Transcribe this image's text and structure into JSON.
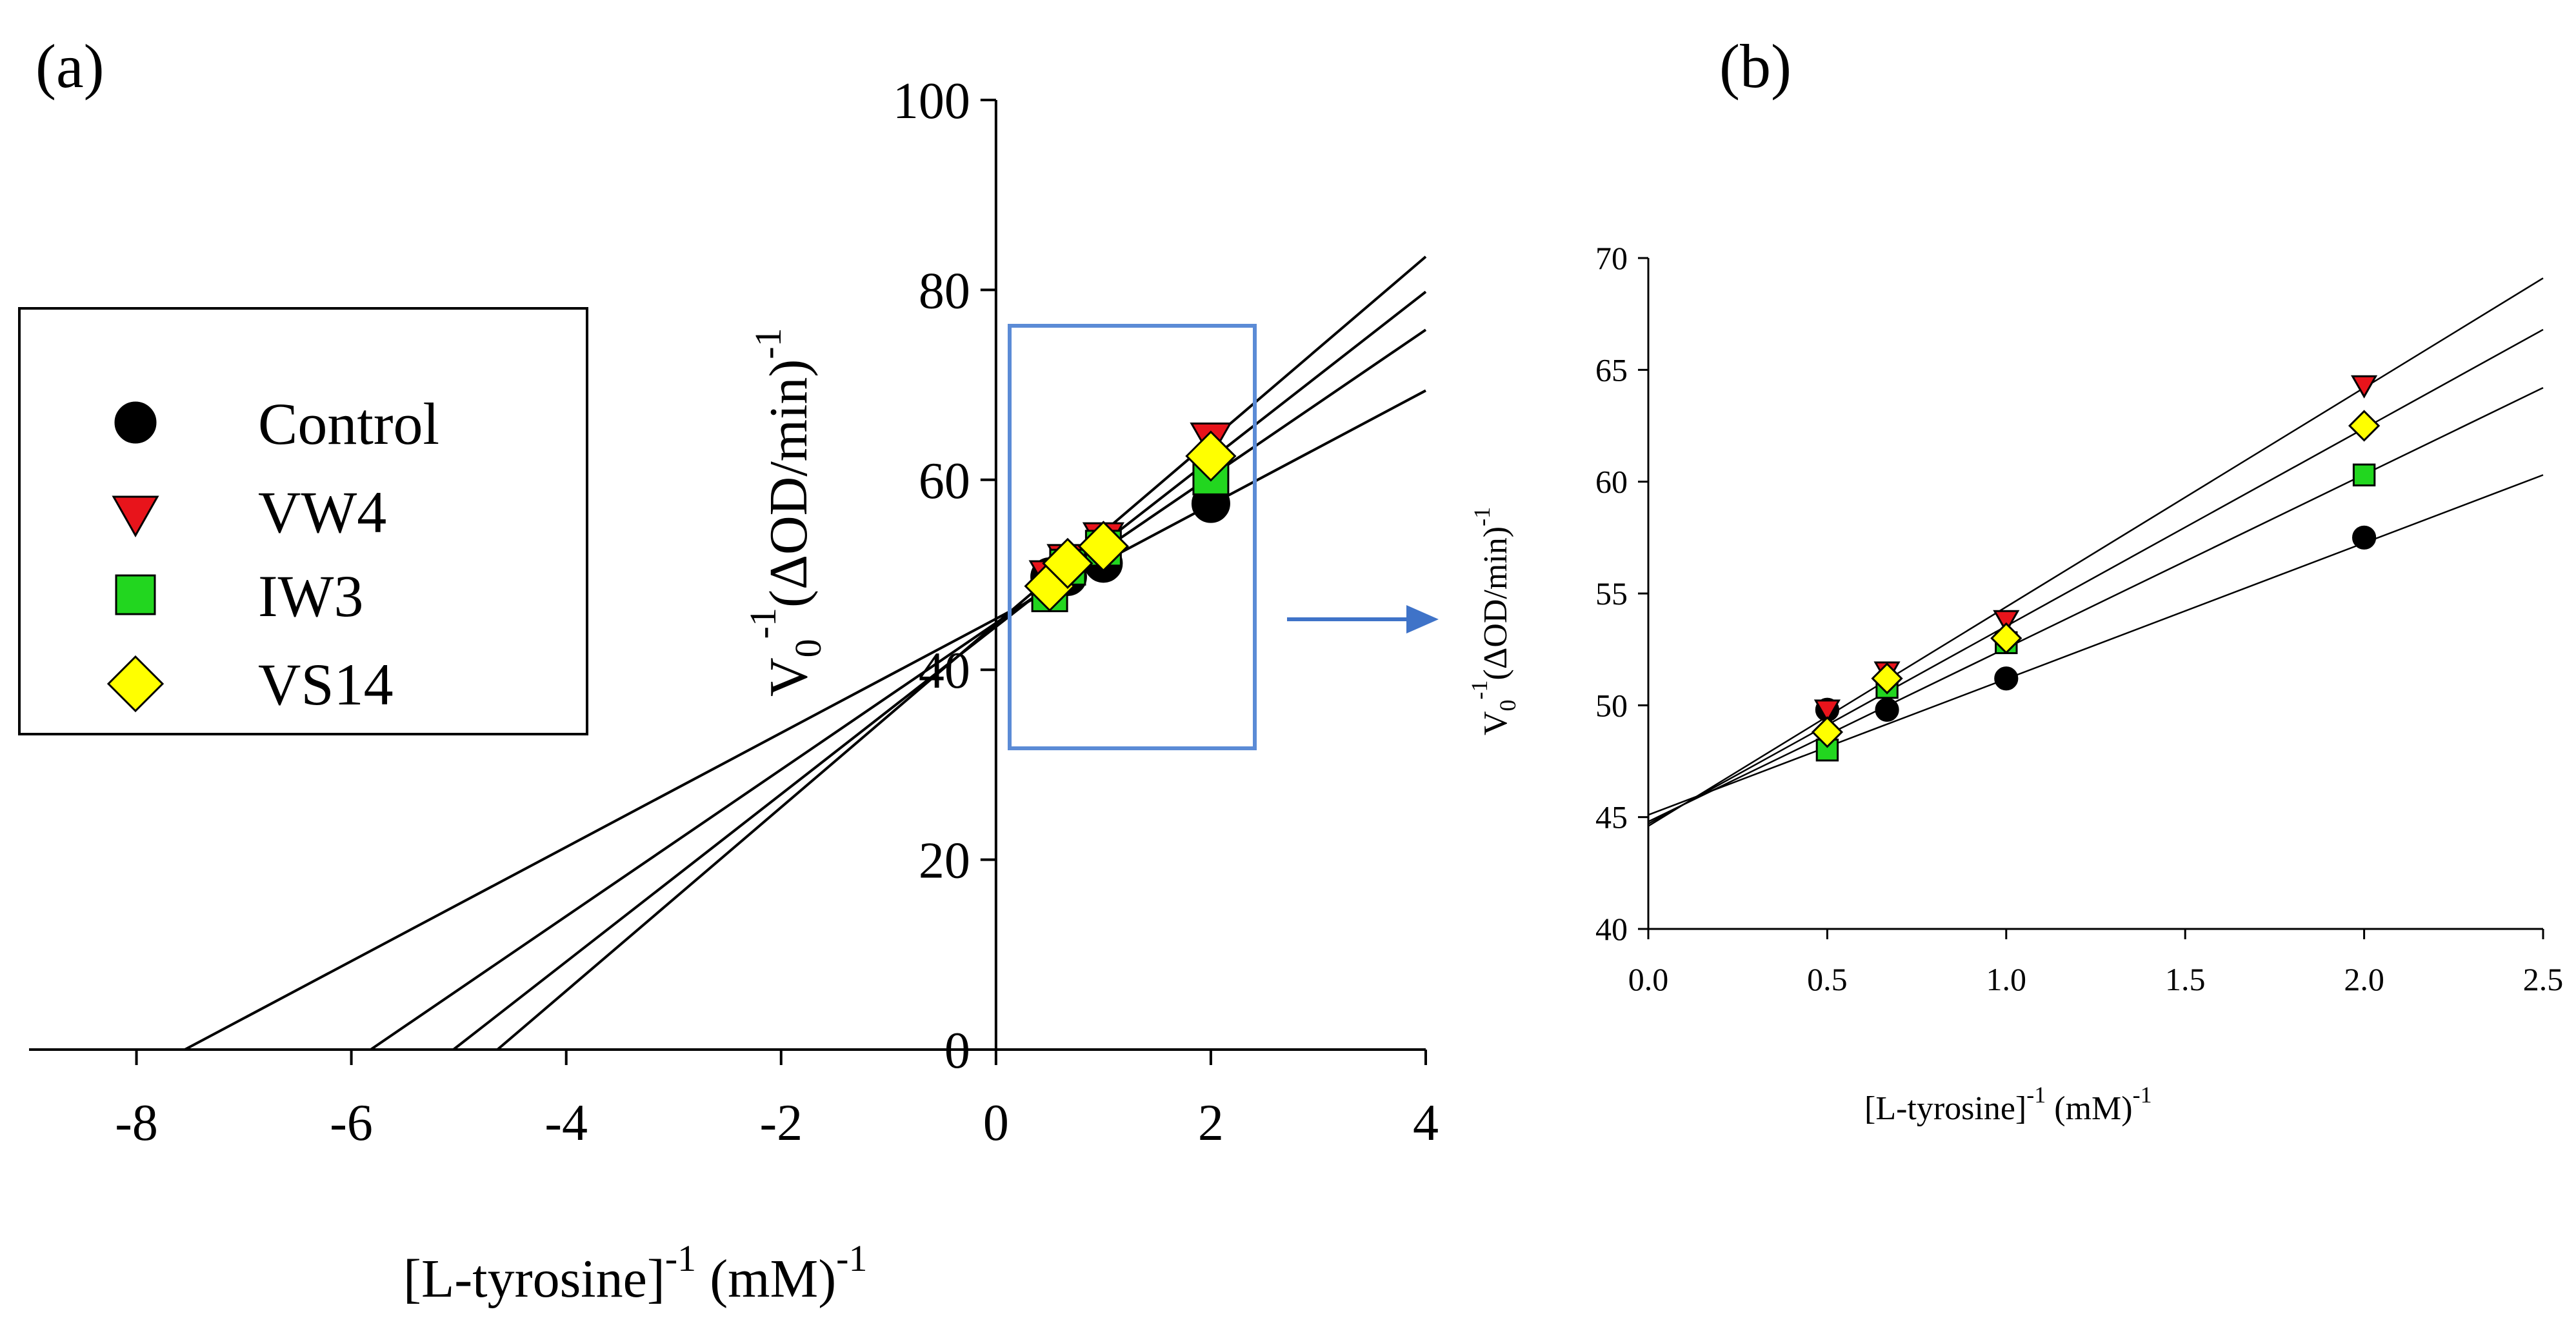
{
  "figure_labels": {
    "a": "(a)",
    "b": "(b)"
  },
  "axis_text": {
    "a": {
      "x_main": "[L-tyrosine]",
      "x_sup1": "-1",
      "x_unit": " (mM)",
      "x_sup2": "-1",
      "y_main": "V",
      "y_sub": "0",
      "y_sup1": "-1",
      "y_unit": "(ΔOD/min)",
      "y_sup2": "-1"
    },
    "b": {
      "x_main": "[L-tyrosine]",
      "x_sup1": "-1",
      "x_unit": " (mM)",
      "x_sup2": "-1",
      "y_main": "V",
      "y_sub": "0",
      "y_sup1": "-1",
      "y_unit": "(ΔOD/min)",
      "y_sup2": "-1"
    }
  },
  "colors": {
    "Control": "#000000",
    "VW4": "#e8141b",
    "IW3": "#22d61f",
    "VS14": "#ffff00",
    "inset_box": "#5b8bd6",
    "arrow": "#3f73c8"
  },
  "chart_data": [
    {
      "type": "scatter",
      "panel": "a",
      "title": "",
      "xlabel": "[L-tyrosine]-1 (mM)-1",
      "ylabel": "V0-1(ΔOD/min)-1",
      "xlim": [
        -9,
        4
      ],
      "ylim": [
        0,
        100
      ],
      "xticks": [
        -8,
        -6,
        -4,
        -2,
        0,
        2,
        4
      ],
      "yticks": [
        0,
        20,
        40,
        60,
        80,
        100
      ],
      "xtick_labels": [
        "-8",
        "-6",
        "-4",
        "-2",
        "0",
        "2",
        "4"
      ],
      "ytick_labels": [
        "0",
        "20",
        "40",
        "60",
        "80",
        "100"
      ],
      "legend_position": "left",
      "series": [
        {
          "name": "Control",
          "marker": "circle",
          "x": [
            0.5,
            0.667,
            1.0,
            2.0
          ],
          "y": [
            49.8,
            49.8,
            51.2,
            57.5
          ],
          "fit": {
            "x": [
              -7.55,
              4
            ],
            "y": [
              0,
              69.4
            ]
          }
        },
        {
          "name": "VW4",
          "marker": "triangle-down",
          "x": [
            0.5,
            0.667,
            1.0,
            2.0
          ],
          "y": [
            49.8,
            51.5,
            53.8,
            64.3
          ],
          "fit": {
            "x": [
              -4.64,
              4
            ],
            "y": [
              0,
              83.5
            ]
          }
        },
        {
          "name": "IW3",
          "marker": "square",
          "x": [
            0.5,
            0.667,
            1.0,
            2.0
          ],
          "y": [
            48.0,
            50.8,
            52.8,
            60.3
          ],
          "fit": {
            "x": [
              -5.82,
              4
            ],
            "y": [
              0,
              75.8
            ]
          }
        },
        {
          "name": "VS14",
          "marker": "diamond",
          "x": [
            0.5,
            0.667,
            1.0,
            2.0
          ],
          "y": [
            48.8,
            51.2,
            53.0,
            62.5
          ],
          "fit": {
            "x": [
              -5.05,
              4
            ],
            "y": [
              0,
              79.8
            ]
          }
        }
      ]
    },
    {
      "type": "scatter",
      "panel": "b",
      "title": "",
      "xlabel": "[L-tyrosine]-1 (mM)-1",
      "ylabel": "V0-1(ΔOD/min)-1",
      "xlim": [
        0,
        2.5
      ],
      "ylim": [
        40,
        70
      ],
      "xticks": [
        0,
        0.5,
        1.0,
        1.5,
        2.0,
        2.5
      ],
      "yticks": [
        40,
        45,
        50,
        55,
        60,
        65,
        70
      ],
      "xtick_labels": [
        "0.0",
        "0.5",
        "1.0",
        "1.5",
        "2.0",
        "2.5"
      ],
      "ytick_labels": [
        "40",
        "45",
        "50",
        "55",
        "60",
        "65",
        "70"
      ],
      "series": [
        {
          "name": "Control",
          "marker": "circle",
          "x": [
            0.5,
            0.667,
            1.0,
            2.0
          ],
          "y": [
            49.8,
            49.8,
            51.2,
            57.5
          ],
          "fit": {
            "x": [
              0,
              2.5
            ],
            "y": [
              45.1,
              60.3
            ]
          }
        },
        {
          "name": "VW4",
          "marker": "triangle-down",
          "x": [
            0.5,
            0.667,
            1.0,
            2.0
          ],
          "y": [
            49.8,
            51.5,
            53.8,
            64.3
          ],
          "fit": {
            "x": [
              0,
              2.5
            ],
            "y": [
              44.6,
              69.1
            ]
          }
        },
        {
          "name": "IW3",
          "marker": "square",
          "x": [
            0.5,
            0.667,
            1.0,
            2.0
          ],
          "y": [
            48.0,
            50.8,
            52.8,
            60.3
          ],
          "fit": {
            "x": [
              0,
              2.5
            ],
            "y": [
              44.8,
              64.2
            ]
          }
        },
        {
          "name": "VS14",
          "marker": "diamond",
          "x": [
            0.5,
            0.667,
            1.0,
            2.0
          ],
          "y": [
            48.8,
            51.2,
            53.0,
            62.5
          ],
          "fit": {
            "x": [
              0,
              2.5
            ],
            "y": [
              44.7,
              66.8
            ]
          }
        }
      ]
    }
  ]
}
